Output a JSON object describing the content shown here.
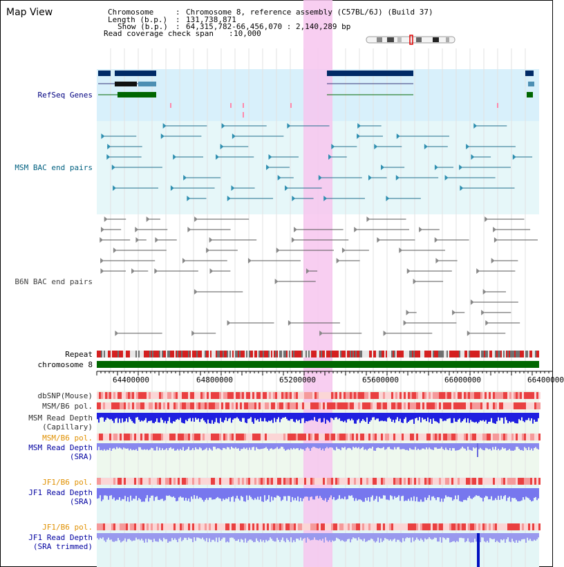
{
  "title": "Map View",
  "header": {
    "chromosome_label": "Chromosome",
    "chromosome_value": "Chromosome 8, reference assembly (C57BL/6J) (Build 37)",
    "length_label": "Length (b.p.)",
    "length_value": "131,738,871",
    "show_label": "Show (b.p.)",
    "show_value": "64,315,782-66,456,070 : 2,140,289 bp",
    "coverage_label": "Read coverage check span",
    "coverage_value": "10,000"
  },
  "tracks": {
    "refseq": "RefSeq Genes",
    "msm_bac": "MSM BAC end pairs",
    "b6n_bac": "B6N BAC end pairs",
    "repeat": "Repeat",
    "chromosome": "chromosome 8",
    "dbsnp": "dbSNP(Mouse)",
    "msm_b6_pol_1": "MSM/B6 pol.",
    "msm_depth_cap_1": "MSM Read Depth",
    "msm_depth_cap_2": "(Capillary)",
    "msm_b6_pol_2": "MSM/B6 pol.",
    "msm_depth_sra_1": "MSM Read Depth",
    "msm_depth_sra_2": "(SRA)",
    "jf1_b6_pol_1": "JF1/B6 pol.",
    "jf1_depth_sra_1": "JF1 Read Depth",
    "jf1_depth_sra_2": "(SRA)",
    "jf1_b6_pol_2": "JF1/B6 pol.",
    "jf1_depth_trim_1": "JF1 Read Depth",
    "jf1_depth_trim_2": "(SRA trimmed)"
  },
  "axis": {
    "ticks": [
      "64400000",
      "64800000",
      "65200000",
      "65600000",
      "66000000",
      "66400000"
    ]
  },
  "colors": {
    "refseq_label": "#000080",
    "msm_bac_label": "#006080",
    "b6n_bac_label": "#404040",
    "pol_label": "#e09000",
    "depth_label": "#0000a0",
    "highlight": "#f7c6ee",
    "refseq_bg": "#d8f0fb",
    "msm_bg": "#e8f8fa"
  }
}
